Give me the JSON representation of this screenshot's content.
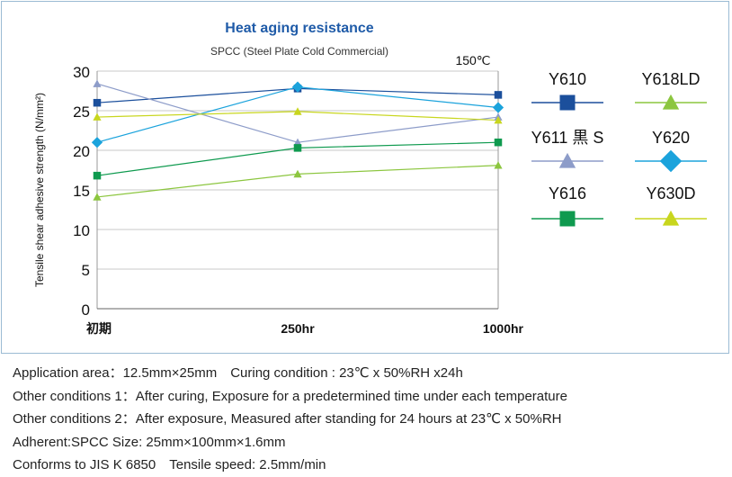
{
  "chart_data": {
    "type": "line",
    "title": "Heat aging resistance",
    "subtitle": "SPCC (Steel Plate Cold Commercial)",
    "condition_label": "150℃",
    "ylabel": "Tensile shear adhesive strength (N/mm²)",
    "xlabel": "",
    "categories": [
      "初期",
      "250hr",
      "1000hr"
    ],
    "ylim": [
      0,
      30
    ],
    "yticks": [
      0,
      5,
      10,
      15,
      20,
      25,
      30
    ],
    "grid": true,
    "legend_position": "right",
    "series": [
      {
        "name": "Y610",
        "values": [
          26.0,
          27.8,
          27.0
        ],
        "color": "#1b4f9c",
        "marker": "square"
      },
      {
        "name": "Y618LD",
        "values": [
          14.1,
          17.0,
          18.1
        ],
        "color": "#8cc63f",
        "marker": "triangle"
      },
      {
        "name": "Y611 黒 S",
        "values": [
          28.4,
          21.0,
          24.2
        ],
        "color": "#8d9cc9",
        "marker": "triangle"
      },
      {
        "name": "Y620",
        "values": [
          21.0,
          28.0,
          25.4
        ],
        "color": "#1ba3dc",
        "marker": "diamond"
      },
      {
        "name": "Y616",
        "values": [
          16.8,
          20.3,
          21.0
        ],
        "color": "#0f9a4f",
        "marker": "square"
      },
      {
        "name": "Y630D",
        "values": [
          24.2,
          24.9,
          23.8
        ],
        "color": "#c8d61e",
        "marker": "triangle"
      }
    ]
  },
  "notes": [
    "Application area：12.5mm×25mm　Curing condition : 23℃ x 50%RH x24h",
    "Other conditions 1：After curing, Exposure for a predetermined time under each temperature",
    "Other conditions 2：After exposure, Measured after standing for 24 hours at 23℃ x 50%RH",
    "Adherent:SPCC Size: 25mm×100mm×1.6mm",
    "Conforms to JIS K 6850　Tensile speed: 2.5mm/min"
  ]
}
